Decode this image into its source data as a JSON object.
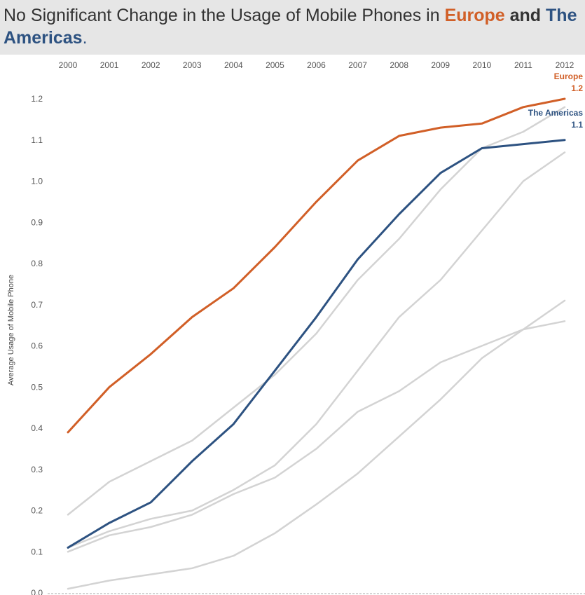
{
  "title": {
    "prefix": "No Significant Change in the Usage of Mobile Phones in ",
    "highlight1": "Europe",
    "connector": " and ",
    "highlight2": "The Americas",
    "suffix": "."
  },
  "chart_data": {
    "type": "line",
    "title": "No Significant Change in the Usage of Mobile Phones in Europe and The Americas.",
    "xlabel": "",
    "ylabel": "Average Usage of Mobile Phone",
    "x": [
      2000,
      2001,
      2002,
      2003,
      2004,
      2005,
      2006,
      2007,
      2008,
      2009,
      2010,
      2011,
      2012
    ],
    "ylim": [
      0.0,
      1.2
    ],
    "yticks": [
      "0.0",
      "0.1",
      "0.2",
      "0.3",
      "0.4",
      "0.5",
      "0.6",
      "0.7",
      "0.8",
      "0.9",
      "1.0",
      "1.1",
      "1.2"
    ],
    "grid": false,
    "x_axis_position": "top",
    "series": [
      {
        "name": "Europe",
        "highlight": true,
        "color": "#d15f27",
        "end_label": "Europe",
        "end_value": "1.2",
        "values": [
          0.39,
          0.5,
          0.58,
          0.67,
          0.74,
          0.84,
          0.95,
          1.05,
          1.11,
          1.13,
          1.14,
          1.18,
          1.2
        ]
      },
      {
        "name": "The Americas",
        "highlight": true,
        "color": "#2d5281",
        "end_label": "The Americas",
        "end_value": "1.1",
        "values": [
          0.11,
          0.17,
          0.22,
          0.32,
          0.41,
          0.54,
          0.67,
          0.81,
          0.92,
          1.02,
          1.08,
          1.09,
          1.1
        ]
      },
      {
        "highlight": false,
        "color": "#d3d3d3",
        "values": [
          0.19,
          0.27,
          0.32,
          0.37,
          0.45,
          0.53,
          0.63,
          0.76,
          0.86,
          0.98,
          1.08,
          1.12,
          1.18
        ]
      },
      {
        "highlight": false,
        "color": "#d3d3d3",
        "values": [
          0.11,
          0.15,
          0.18,
          0.2,
          0.25,
          0.31,
          0.41,
          0.54,
          0.67,
          0.76,
          0.88,
          1.0,
          1.07
        ]
      },
      {
        "highlight": false,
        "color": "#d3d3d3",
        "values": [
          0.1,
          0.14,
          0.16,
          0.19,
          0.24,
          0.28,
          0.35,
          0.44,
          0.49,
          0.56,
          0.6,
          0.64,
          0.66
        ]
      },
      {
        "highlight": false,
        "color": "#d3d3d3",
        "values": [
          0.01,
          0.03,
          0.045,
          0.06,
          0.09,
          0.145,
          0.215,
          0.29,
          0.38,
          0.47,
          0.57,
          0.64,
          0.71
        ]
      }
    ]
  }
}
